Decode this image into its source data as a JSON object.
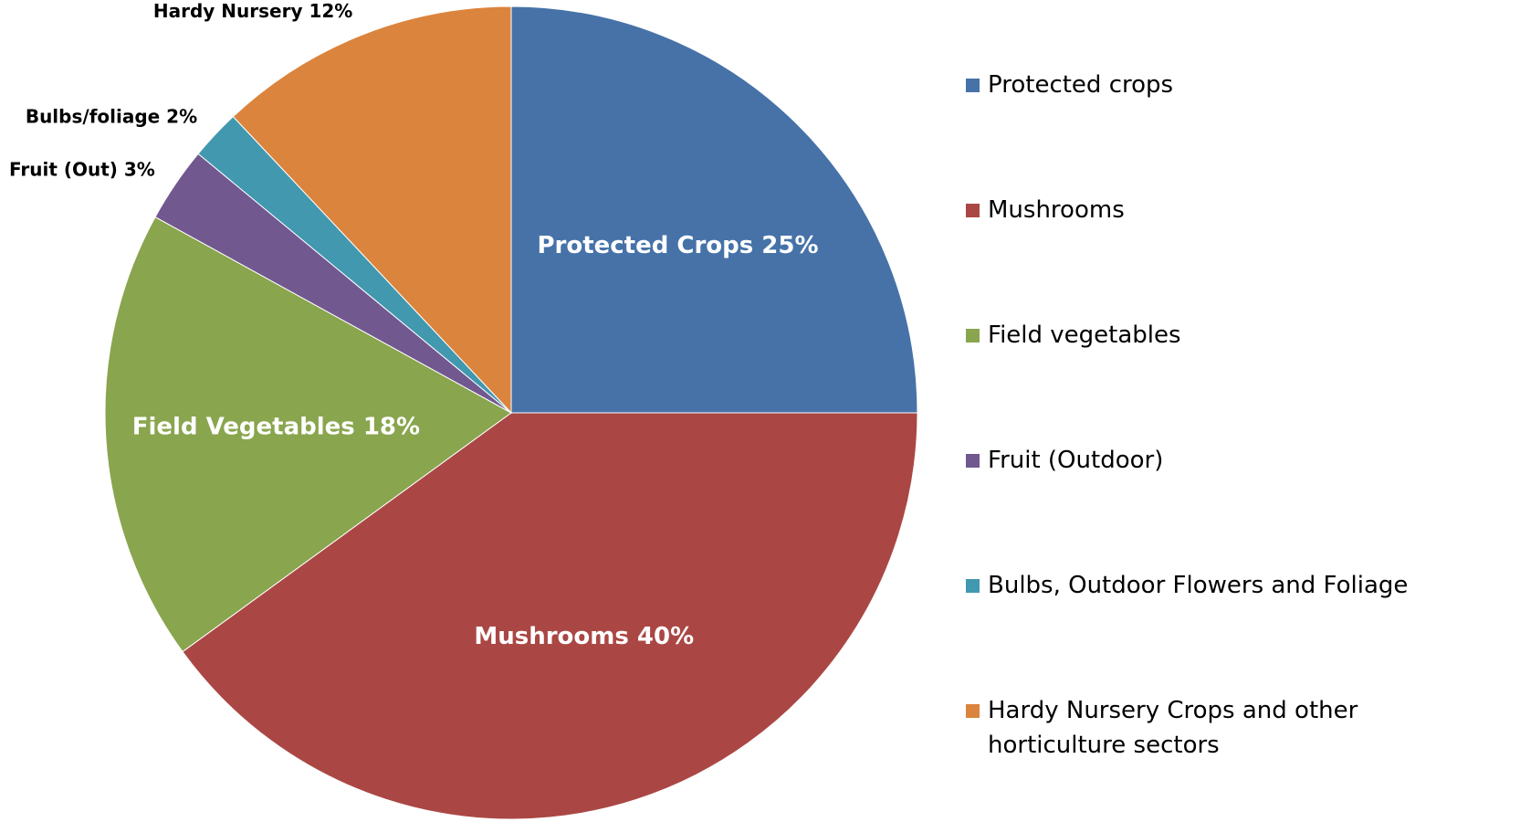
{
  "chart_data": {
    "type": "pie",
    "categories": [
      "Protected crops",
      "Mushrooms",
      "Field vegetables",
      "Fruit (Outdoor)",
      "Bulbs, Outdoor Flowers and Foliage",
      "Hardy Nursery Crops and other horticulture sectors"
    ],
    "values": [
      25,
      40,
      18,
      3,
      2,
      12
    ],
    "value_labels": [
      "Protected Crops 25%",
      "Mushrooms 40%",
      "Field Vegetables 18%",
      "Fruit (Out) 3%",
      "Bulbs/foliage 2%",
      "Hardy Nursery 12%"
    ],
    "colors": [
      "#4672a8",
      "#aa4744",
      "#89a54e",
      "#71588f",
      "#4198af",
      "#db843d"
    ],
    "legend": "right"
  }
}
